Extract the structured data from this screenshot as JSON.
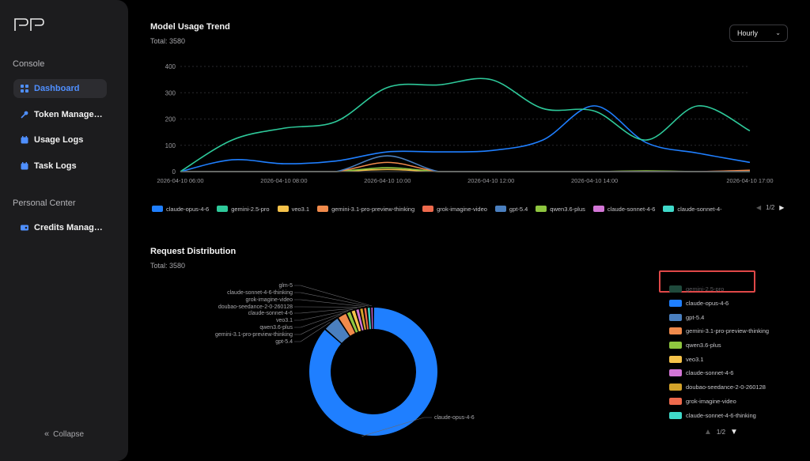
{
  "sidebar": {
    "logo": "PP",
    "console_label": "Console",
    "items": [
      {
        "label": "Dashboard",
        "icon": "dashboard-icon",
        "active": true
      },
      {
        "label": "Token Manage…",
        "icon": "key-icon"
      },
      {
        "label": "Usage Logs",
        "icon": "calendar-icon"
      },
      {
        "label": "Task Logs",
        "icon": "calendar-icon"
      }
    ],
    "personal_label": "Personal Center",
    "personal_items": [
      {
        "label": "Credits Manag…",
        "icon": "credit-card-icon"
      }
    ],
    "collapse_label": "Collapse"
  },
  "trend": {
    "title": "Model Usage Trend",
    "total": "Total: 3580",
    "granularity": "Hourly",
    "legend_page": "1/2",
    "legend": [
      {
        "name": "claude-opus-4-6",
        "color": "#1f7fff"
      },
      {
        "name": "gemini-2.5-pro",
        "color": "#2ec99a"
      },
      {
        "name": "veo3.1",
        "color": "#f5c24a"
      },
      {
        "name": "gemini-3.1-pro-preview-thinking",
        "color": "#f08a4b"
      },
      {
        "name": "grok-imagine-video",
        "color": "#ee6a4d"
      },
      {
        "name": "gpt-5.4",
        "color": "#4a7fbf"
      },
      {
        "name": "qwen3.6-plus",
        "color": "#8ec63f"
      },
      {
        "name": "claude-sonnet-4-6",
        "color": "#d376d6"
      },
      {
        "name": "claude-sonnet-4-",
        "color": "#3fd9c9"
      }
    ]
  },
  "distribution": {
    "title": "Request Distribution",
    "total": "Total: 3580",
    "legend_page": "1/2",
    "legend": [
      {
        "name": "gemini-2.5-pro",
        "color": "#1f4a3c",
        "dim": true
      },
      {
        "name": "claude-opus-4-6",
        "color": "#1f7fff"
      },
      {
        "name": "gpt-5.4",
        "color": "#4a7fbf"
      },
      {
        "name": "gemini-3.1-pro-preview-thinking",
        "color": "#f08a4b"
      },
      {
        "name": "qwen3.6-plus",
        "color": "#8ec63f"
      },
      {
        "name": "veo3.1",
        "color": "#f5c24a"
      },
      {
        "name": "claude-sonnet-4-6",
        "color": "#d376d6"
      },
      {
        "name": "doubao-seedance-2-0-260128",
        "color": "#d4a32a"
      },
      {
        "name": "grok-imagine-video",
        "color": "#ee6a4d"
      },
      {
        "name": "claude-sonnet-4-6-thinking",
        "color": "#3fd9c9"
      }
    ]
  },
  "chart_data": [
    {
      "type": "line",
      "title": "Model Usage Trend",
      "x_ticks": [
        "2026-04-10 06:00",
        "2026-04-10 08:00",
        "2026-04-10 10:00",
        "2026-04-10 12:00",
        "2026-04-10 14:00",
        "2026-04-10 17:00"
      ],
      "y_ticks": [
        0,
        100,
        200,
        300,
        400
      ],
      "ylim": [
        0,
        400
      ],
      "x_hours": [
        6,
        7,
        8,
        9,
        10,
        11,
        12,
        13,
        14,
        15,
        16,
        17
      ],
      "series": [
        {
          "name": "gemini-2.5-pro",
          "color": "#2ec99a",
          "values": [
            0,
            120,
            165,
            190,
            320,
            330,
            350,
            240,
            230,
            120,
            250,
            155
          ]
        },
        {
          "name": "claude-opus-4-6",
          "color": "#1f7fff",
          "values": [
            0,
            45,
            30,
            40,
            75,
            75,
            80,
            120,
            250,
            110,
            70,
            35
          ]
        },
        {
          "name": "gpt-5.4",
          "color": "#4a7fbf",
          "values": [
            0,
            0,
            0,
            0,
            60,
            0,
            0,
            0,
            0,
            0,
            0,
            0
          ]
        },
        {
          "name": "gemini-3.1-pro-preview-thinking",
          "color": "#f08a4b",
          "values": [
            0,
            0,
            0,
            0,
            35,
            0,
            0,
            0,
            0,
            0,
            0,
            5
          ]
        },
        {
          "name": "qwen3.6-plus",
          "color": "#8ec63f",
          "values": [
            0,
            0,
            0,
            0,
            15,
            0,
            0,
            0,
            0,
            3,
            0,
            0
          ]
        },
        {
          "name": "veo3.1",
          "color": "#f5c24a",
          "values": [
            0,
            0,
            0,
            0,
            8,
            0,
            0,
            0,
            0,
            0,
            0,
            0
          ]
        }
      ]
    },
    {
      "type": "pie",
      "title": "Request Distribution",
      "slices": [
        {
          "name": "claude-opus-4-6",
          "value": 86.5,
          "color": "#1f7fff"
        },
        {
          "name": "gpt-5.4",
          "value": 4.2,
          "color": "#4a7fbf"
        },
        {
          "name": "gemini-3.1-pro-preview-thinking",
          "value": 2.4,
          "color": "#f08a4b"
        },
        {
          "name": "qwen3.6-plus",
          "value": 1.2,
          "color": "#8ec63f"
        },
        {
          "name": "veo3.1",
          "value": 1.2,
          "color": "#f5c24a"
        },
        {
          "name": "claude-sonnet-4-6",
          "value": 1.0,
          "color": "#d376d6"
        },
        {
          "name": "doubao-seedance-2-0-260128",
          "value": 1.0,
          "color": "#d4a32a"
        },
        {
          "name": "grok-imagine-video",
          "value": 0.9,
          "color": "#ee6a4d"
        },
        {
          "name": "claude-sonnet-4-6-thinking",
          "value": 0.9,
          "color": "#3fd9c9"
        },
        {
          "name": "glm-5",
          "value": 0.7,
          "color": "#c95fd0"
        }
      ],
      "labels_shown": [
        "glm-5",
        "claude-sonnet-4-6-thinking",
        "grok-imagine-video",
        "doubao-seedance-2-0-260128",
        "claude-sonnet-4-6",
        "veo3.1",
        "qwen3.6-plus",
        "gemini-3.1-pro-preview-thinking",
        "gpt-5.4",
        "claude-opus-4-6"
      ]
    }
  ]
}
